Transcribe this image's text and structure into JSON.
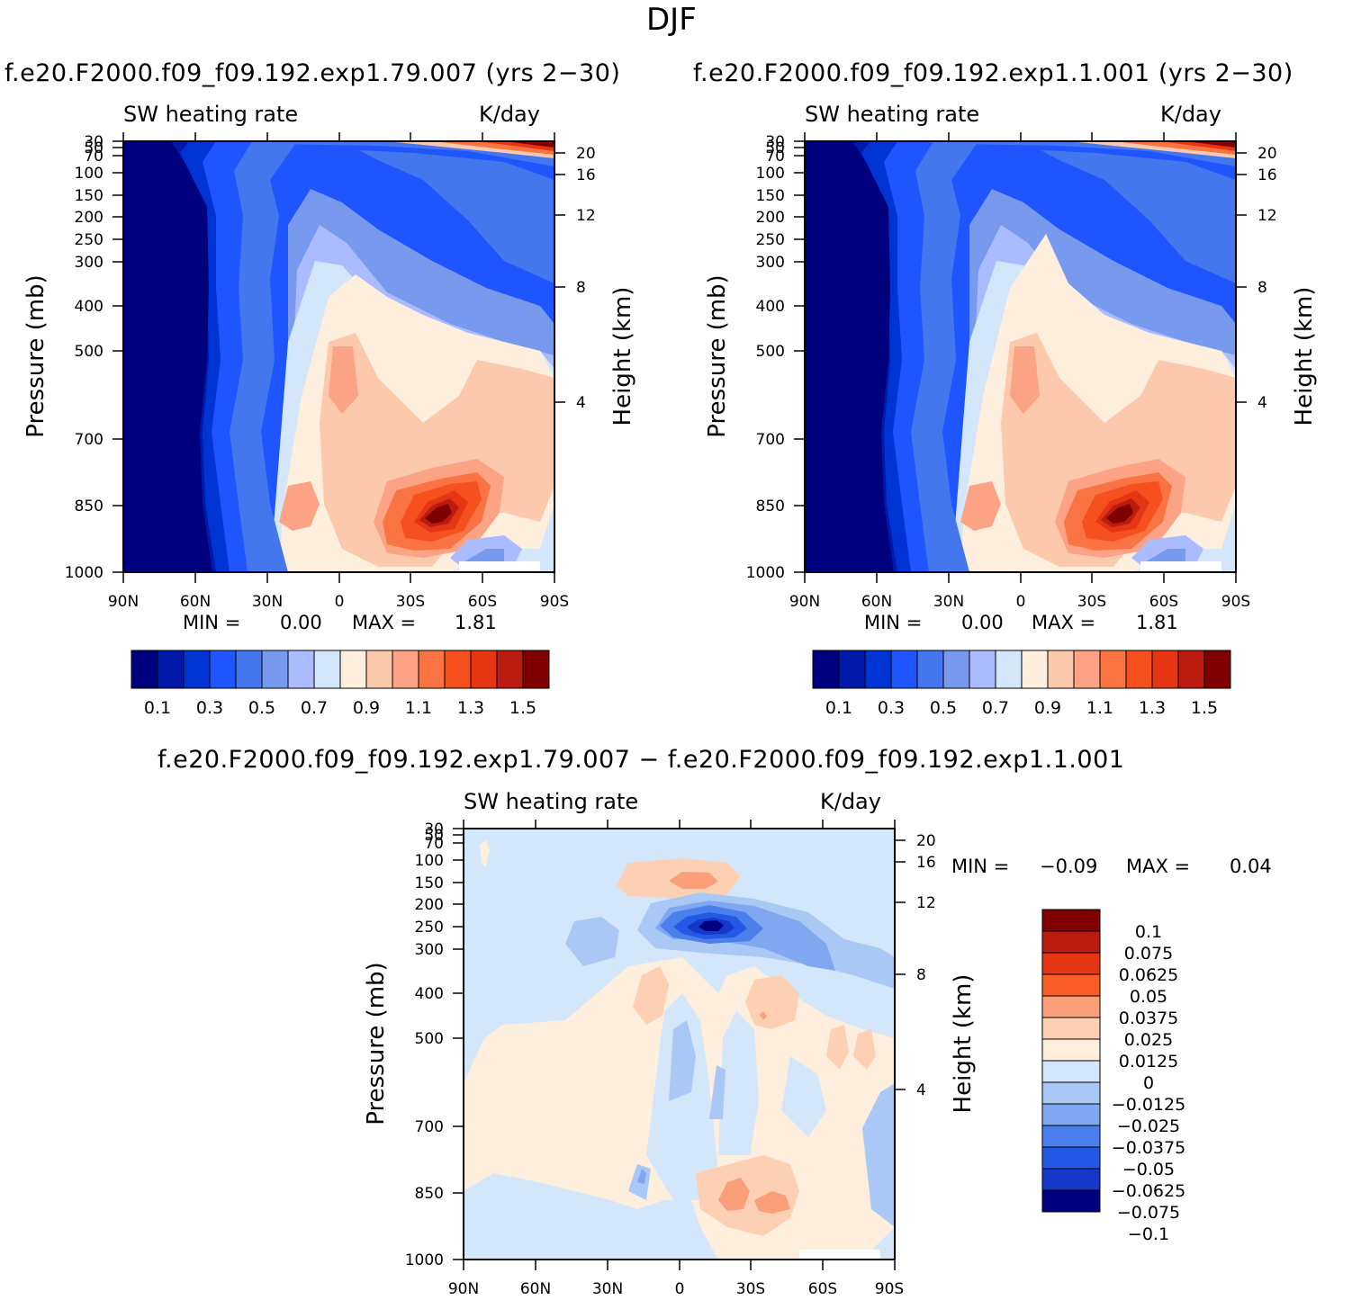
{
  "figure": {
    "title": "DJF",
    "diff_title": "f.e20.F2000.f09_f09.192.exp1.79.007 − f.e20.F2000.f09_f09.192.exp1.1.001"
  },
  "panels": [
    {
      "title": "f.e20.F2000.f09_f09.192.exp1.79.007 (yrs 2−30)",
      "left_label": "SW heating rate",
      "right_label": "K/day",
      "min_label": "MIN =",
      "min_value": "0.00",
      "max_label": "MAX =",
      "max_value": "1.81"
    },
    {
      "title": "f.e20.F2000.f09_f09.192.exp1.1.001 (yrs 2−30)",
      "left_label": "SW heating rate",
      "right_label": "K/day",
      "min_label": "MIN =",
      "min_value": "0.00",
      "max_label": "MAX =",
      "max_value": "1.81"
    },
    {
      "title": "",
      "left_label": "SW heating rate",
      "right_label": "K/day",
      "min_label": "MIN =",
      "min_value": "−0.09",
      "max_label": "MAX =",
      "max_value": "0.04"
    }
  ],
  "axes": {
    "ylabel": "Pressure (mb)",
    "y2label": "Height (km)",
    "x_ticks": [
      "90N",
      "60N",
      "30N",
      "0",
      "30S",
      "60S",
      "90S"
    ],
    "y_ticks": [
      "30",
      "50",
      "70",
      "100",
      "150",
      "200",
      "250",
      "300",
      "400",
      "500",
      "700",
      "850",
      "1000"
    ],
    "y2_ticks": [
      "20",
      "16",
      "12",
      "8",
      "4"
    ]
  },
  "colorbar_abs": {
    "colors": [
      "#00007f",
      "#0019a8",
      "#0033d4",
      "#1f55ff",
      "#4477ee",
      "#7799ee",
      "#aabbff",
      "#d4e6fa",
      "#feeedd",
      "#fcc9ad",
      "#fba384",
      "#fa7342",
      "#f6501e",
      "#e63512",
      "#bb1c10",
      "#7f0000"
    ],
    "labels": [
      "0.1",
      "0.3",
      "0.5",
      "0.7",
      "0.9",
      "1.1",
      "1.3",
      "1.5"
    ]
  },
  "colorbar_diff": {
    "colors": [
      "#7f0000",
      "#bb1c10",
      "#e63512",
      "#fa5d26",
      "#fb9f7a",
      "#fdd0b4",
      "#feeedd",
      "#d4e6fa",
      "#aac8f5",
      "#80a8f0",
      "#4a7fec",
      "#2459e6",
      "#1538c8",
      "#00007f"
    ],
    "labels": [
      "0.1",
      "0.075",
      "0.0625",
      "0.05",
      "0.0375",
      "0.025",
      "0.0125",
      "0",
      "−0.0125",
      "−0.025",
      "−0.0375",
      "−0.05",
      "−0.0625",
      "−0.075",
      "−0.1"
    ]
  },
  "chart_data": [
    {
      "type": "heatmap",
      "title": "f.e20.F2000.f09_f09.192.exp1.79.007 (yrs 2−30)",
      "variable": "SW heating rate",
      "units": "K/day",
      "xlabel": "",
      "ylabel": "Pressure (mb)",
      "y2label": "Height (km)",
      "x_categories": [
        "90N",
        "60N",
        "30N",
        "0",
        "30S",
        "60S",
        "90S"
      ],
      "y_levels_mb": [
        30,
        50,
        70,
        100,
        150,
        200,
        250,
        300,
        400,
        500,
        700,
        850,
        1000
      ],
      "height_km_ticks": [
        20,
        16,
        12,
        8,
        4
      ],
      "min": 0.0,
      "max": 1.81,
      "contour_levels": [
        0.1,
        0.2,
        0.3,
        0.4,
        0.5,
        0.6,
        0.7,
        0.8,
        0.9,
        1.0,
        1.1,
        1.2,
        1.3,
        1.4,
        1.5
      ]
    },
    {
      "type": "heatmap",
      "title": "f.e20.F2000.f09_f09.192.exp1.1.001 (yrs 2−30)",
      "variable": "SW heating rate",
      "units": "K/day",
      "xlabel": "",
      "ylabel": "Pressure (mb)",
      "y2label": "Height (km)",
      "x_categories": [
        "90N",
        "60N",
        "30N",
        "0",
        "30S",
        "60S",
        "90S"
      ],
      "y_levels_mb": [
        30,
        50,
        70,
        100,
        150,
        200,
        250,
        300,
        400,
        500,
        700,
        850,
        1000
      ],
      "height_km_ticks": [
        20,
        16,
        12,
        8,
        4
      ],
      "min": 0.0,
      "max": 1.81,
      "contour_levels": [
        0.1,
        0.2,
        0.3,
        0.4,
        0.5,
        0.6,
        0.7,
        0.8,
        0.9,
        1.0,
        1.1,
        1.2,
        1.3,
        1.4,
        1.5
      ]
    },
    {
      "type": "heatmap",
      "title": "f.e20.F2000.f09_f09.192.exp1.79.007 − f.e20.F2000.f09_f09.192.exp1.1.001",
      "variable": "SW heating rate",
      "units": "K/day",
      "xlabel": "",
      "ylabel": "Pressure (mb)",
      "y2label": "Height (km)",
      "x_categories": [
        "90N",
        "60N",
        "30N",
        "0",
        "30S",
        "60S",
        "90S"
      ],
      "y_levels_mb": [
        30,
        50,
        70,
        100,
        150,
        200,
        250,
        300,
        400,
        500,
        700,
        850,
        1000
      ],
      "height_km_ticks": [
        20,
        16,
        12,
        8,
        4
      ],
      "min": -0.09,
      "max": 0.04,
      "contour_levels": [
        -0.1,
        -0.075,
        -0.0625,
        -0.05,
        -0.0375,
        -0.025,
        -0.0125,
        0,
        0.0125,
        0.025,
        0.0375,
        0.05,
        0.0625,
        0.075,
        0.1
      ]
    }
  ]
}
